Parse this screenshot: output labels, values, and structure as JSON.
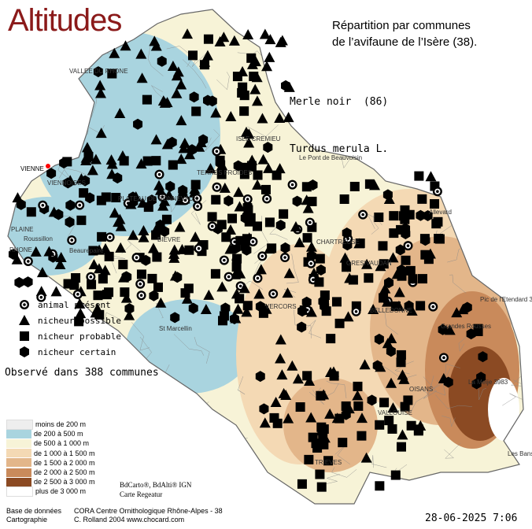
{
  "title": "Altitudes",
  "heading": {
    "line1": "Répartition par communes",
    "line2": "de l’avifaune de l’Isère (38)."
  },
  "species": {
    "common_name": "Merle noir  (86)",
    "latin_name": "Turdus merula L."
  },
  "symbol_legend": [
    {
      "icon": "animal-present-icon",
      "label": "animal présent"
    },
    {
      "icon": "nicheur-possible-icon",
      "label": "nicheur possible"
    },
    {
      "icon": "nicheur-probable-icon",
      "label": "nicheur probable"
    },
    {
      "icon": "nicheur-certain-icon",
      "label": "nicheur certain"
    }
  ],
  "observed_text": "Observé dans 388 communes",
  "altitude_legend": [
    {
      "label": "moins de 200 m",
      "color": "#eeeeee"
    },
    {
      "label": "de 200 à 500 m",
      "color": "#a9d4df"
    },
    {
      "label": "de 500 à 1 000 m",
      "color": "#f7f3d7"
    },
    {
      "label": "de 1 000 à 1 500 m",
      "color": "#f4d9b4"
    },
    {
      "label": "de 1 500 à 2 000 m",
      "color": "#e3b68a"
    },
    {
      "label": "de 2 000 à 2 500 m",
      "color": "#c98a5b"
    },
    {
      "label": "de 2 500 à 3 000 m",
      "color": "#8b4a23"
    },
    {
      "label": "plus de 3 000 m",
      "color": "#ffffff"
    }
  ],
  "copyright": {
    "line1": "BdCarto®, BdAlti® IGN",
    "line2": "Carte Regeatur"
  },
  "footer": {
    "base_label": "Base de données",
    "base_value": "CORA Centre Ornithologique Rhône-Alpes - 38",
    "carto_label": "Cartographie",
    "carto_value": "C. Rolland 2004     www.chocard.com"
  },
  "date": "28-06-2025 7:06",
  "places": [
    {
      "name": "VIENNE"
    },
    {
      "name": "VIENNOISES"
    },
    {
      "name": "PLAINE"
    },
    {
      "name": "RHONE"
    },
    {
      "name": "Roussillon"
    },
    {
      "name": "Beaurepaire"
    },
    {
      "name": "PLATEAU DE BONNEVAUX"
    },
    {
      "name": "St Marcellin"
    },
    {
      "name": "VERCORS"
    },
    {
      "name": "TRIEVES"
    },
    {
      "name": "CHARTREUSE"
    },
    {
      "name": "GRESIVAUDAN"
    },
    {
      "name": "BELLEDONNE"
    },
    {
      "name": "OISANS"
    },
    {
      "name": "VALLOUISE"
    },
    {
      "name": "Le Pont de Beauvoisin"
    },
    {
      "name": "Allevard"
    },
    {
      "name": "Pic de l'Etendard 3464"
    },
    {
      "name": "Grandes Rousses"
    },
    {
      "name": "La Meije 3983"
    },
    {
      "name": "Les Bans 3669"
    },
    {
      "name": "VALLEE DU RHONE"
    },
    {
      "name": "ISLE CREMIEU"
    },
    {
      "name": "TERRES FROIDES"
    },
    {
      "name": "BIEVRE"
    }
  ],
  "colors": {
    "title": "#8b1a1a",
    "outline": "#666666",
    "symbols": "#000000",
    "vienne_dot": "#ff0000"
  },
  "map_layer": {
    "altitude_colors": [
      "#a9d4df",
      "#f7f3d7",
      "#f4d9b4",
      "#e3b68a",
      "#c98a5b",
      "#8b4a23",
      "#ffffff"
    ]
  }
}
